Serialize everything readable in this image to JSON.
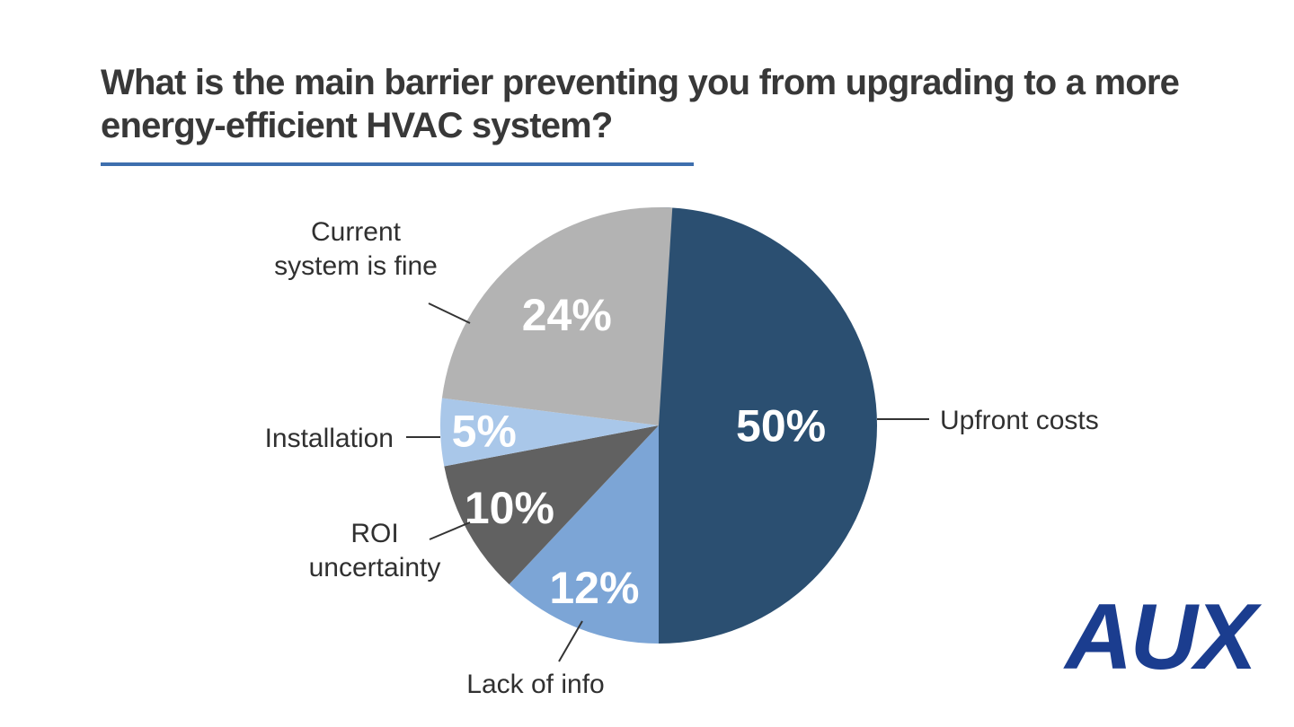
{
  "title": {
    "line1": "What is the main barrier preventing you from upgrading to a more",
    "line2": "energy-efficient HVAC system?",
    "full": "What is the main barrier preventing you from upgrading to a more energy-efficient HVAC system?"
  },
  "divider_color": "#3e6fae",
  "logo": {
    "text": "AUX",
    "color": "#1b3d8f"
  },
  "chart_data": {
    "type": "pie",
    "title": "What is the main barrier preventing you from upgrading to a more energy-efficient HVAC system?",
    "direction": "clockwise",
    "start_angle_deg": 0,
    "legend_position": "outside-callouts",
    "value_label_color": "#ffffff",
    "label_color": "#303030",
    "slices": [
      {
        "label": "Upfront costs",
        "value": 50,
        "display": "50%",
        "color": "#2b4f71"
      },
      {
        "label": "Lack of info",
        "value": 12,
        "display": "12%",
        "color": "#7ca5d6"
      },
      {
        "label": "ROI uncertainty",
        "value": 10,
        "display": "10%",
        "color": "#616161"
      },
      {
        "label": "Installation",
        "value": 5,
        "display": "5%",
        "color": "#a9c7e9"
      },
      {
        "label": "Current system is fine",
        "value": 24,
        "display": "24%",
        "color": "#b3b3b3"
      }
    ]
  }
}
